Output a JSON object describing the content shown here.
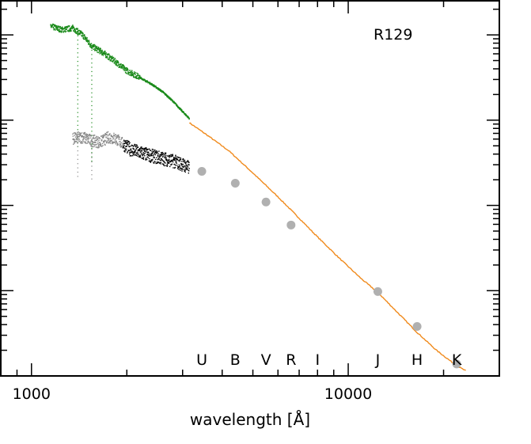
{
  "chart_data": {
    "type": "scatter",
    "title": "R129",
    "xlabel": "wavelength [Å]",
    "ylabel": "",
    "x_scale": "log",
    "y_scale": "log",
    "xlim": [
      800,
      30000
    ],
    "ylim_decades": [
      0,
      4.4
    ],
    "x_ticks": [
      {
        "value": 1000,
        "label": "1000"
      },
      {
        "value": 10000,
        "label": "10000"
      }
    ],
    "band_labels": [
      {
        "label": "U",
        "x": 3450
      },
      {
        "label": "B",
        "x": 4400
      },
      {
        "label": "V",
        "x": 5500
      },
      {
        "label": "R",
        "x": 6600
      },
      {
        "label": "I",
        "x": 8000
      },
      {
        "label": "J",
        "x": 12400
      },
      {
        "label": "H",
        "x": 16500
      },
      {
        "label": "K",
        "x": 22000
      }
    ],
    "photometry": {
      "color": "#b0b0b0",
      "x": [
        3450,
        4400,
        5500,
        6600,
        12400,
        16500,
        22000
      ],
      "y": [
        2.4,
        2.26,
        2.04,
        1.77,
        0.99,
        0.58,
        0.14
      ]
    },
    "model_spectrum": {
      "color": "#f08a1c",
      "x": [
        3150,
        3600,
        4200,
        5000,
        6000,
        7000,
        8000,
        9500,
        11000,
        12400,
        14000,
        16500,
        19000,
        22000,
        23500
      ],
      "y": [
        2.97,
        2.82,
        2.64,
        2.38,
        2.1,
        1.85,
        1.63,
        1.36,
        1.14,
        0.98,
        0.78,
        0.51,
        0.3,
        0.12,
        0.06
      ]
    },
    "uv_spectrum_bright": {
      "color": "#1a8a1a",
      "x": [
        1150,
        1250,
        1350,
        1450,
        1550,
        1700,
        1850,
        2000,
        2200,
        2400,
        2600,
        2800,
        3000,
        3150
      ],
      "y": [
        4.1,
        4.06,
        4.08,
        4.0,
        3.87,
        3.78,
        3.68,
        3.58,
        3.5,
        3.42,
        3.33,
        3.22,
        3.1,
        3.02
      ]
    },
    "uv_spectrum_dimmed": {
      "color_short": "#888888",
      "color_long": "#000000",
      "split_x": 1950,
      "x": [
        1350,
        1450,
        1550,
        1650,
        1750,
        1850,
        1950,
        2050,
        2200,
        2400,
        2600,
        2800,
        3000,
        3150
      ],
      "y": [
        2.78,
        2.8,
        2.76,
        2.74,
        2.8,
        2.78,
        2.72,
        2.66,
        2.62,
        2.58,
        2.55,
        2.52,
        2.48,
        2.44
      ]
    }
  }
}
